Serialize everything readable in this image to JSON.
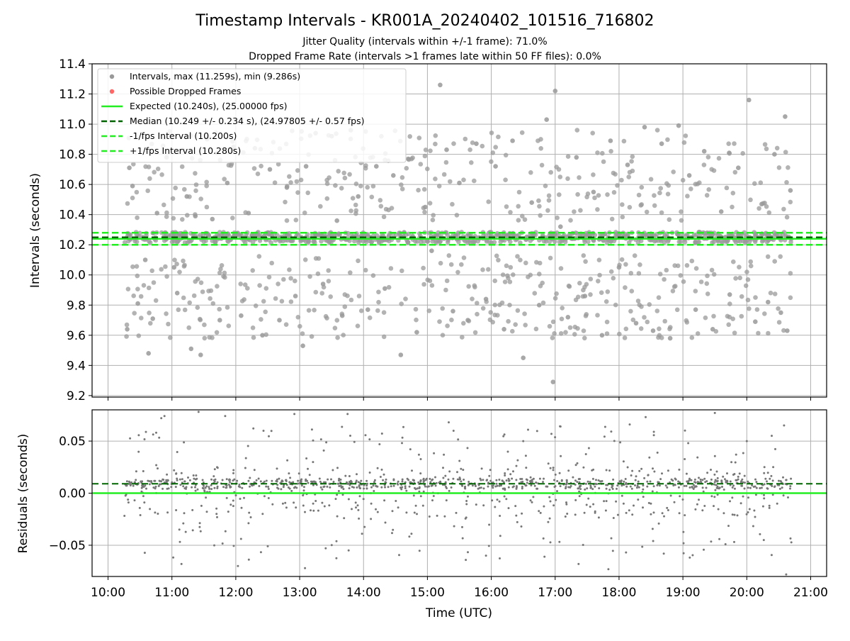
{
  "title": "Timestamp Intervals - KR001A_20240402_101516_716802",
  "subtitle_1": "Jitter Quality (intervals within +/-1 frame): 71.0%",
  "subtitle_2": "Dropped Frame Rate (intervals >1 frames late within 50 FF files): 0.0%",
  "chart_data": [
    {
      "type": "scatter",
      "panel": "top",
      "ylabel": "Intervals (seconds)",
      "xlabel": "",
      "xlim": [
        "09:45",
        "21:15"
      ],
      "ylim": [
        9.19,
        11.4
      ],
      "yticks": [
        "9.2",
        "9.4",
        "9.6",
        "9.8",
        "10.0",
        "10.2",
        "10.4",
        "10.6",
        "10.8",
        "11.0",
        "11.2",
        "11.4"
      ],
      "grid": true,
      "legend_position": "upper-left",
      "legend": [
        {
          "label": "Intervals, max (11.259s), min (9.286s)",
          "kind": "marker",
          "color": "#999999"
        },
        {
          "label": "Possible Dropped Frames",
          "kind": "marker",
          "color": "#ff6666"
        },
        {
          "label": "Expected (10.240s), (25.00000 fps)",
          "kind": "solid",
          "color": "#22ee22"
        },
        {
          "label": "Median (10.249 +/- 0.234 s), (24.97805 +/- 0.57 fps)",
          "kind": "dashed",
          "color": "#006400"
        },
        {
          "label": "-1/fps Interval (10.200s)",
          "kind": "dashed",
          "color": "#22ee22"
        },
        {
          "label": "+1/fps Interval (10.280s)",
          "kind": "dashed",
          "color": "#22ee22"
        }
      ],
      "reference_lines": {
        "expected": 10.24,
        "median": 10.249,
        "minus_1fps": 10.2,
        "plus_1fps": 10.28
      },
      "time_range": [
        "10:15",
        "20:42"
      ],
      "series": [
        {
          "name": "Intervals, max (11.259s), min (9.286s)",
          "color": "#999999",
          "values": [
            {
              "x": "10:18",
              "y": 9.64
            },
            {
              "x": "10:20",
              "y": 10.71
            },
            {
              "x": "10:23",
              "y": 10.59
            },
            {
              "x": "10:28",
              "y": 9.81
            },
            {
              "x": "10:35",
              "y": 10.1
            },
            {
              "x": "10:38",
              "y": 9.48
            },
            {
              "x": "10:42",
              "y": 9.71
            },
            {
              "x": "10:46",
              "y": 10.41
            },
            {
              "x": "10:55",
              "y": 10.78
            },
            {
              "x": "11:02",
              "y": 10.05
            },
            {
              "x": "11:05",
              "y": 9.88
            },
            {
              "x": "11:10",
              "y": 10.83
            },
            {
              "x": "11:14",
              "y": 10.52
            },
            {
              "x": "11:18",
              "y": 9.51
            },
            {
              "x": "11:22",
              "y": 10.39
            },
            {
              "x": "11:27",
              "y": 9.47
            },
            {
              "x": "11:33",
              "y": 10.9
            },
            {
              "x": "11:38",
              "y": 10.37
            },
            {
              "x": "11:45",
              "y": 9.7
            },
            {
              "x": "11:52",
              "y": 10.61
            },
            {
              "x": "11:58",
              "y": 10.85
            },
            {
              "x": "12:05",
              "y": 9.73
            },
            {
              "x": "12:12",
              "y": 10.41
            },
            {
              "x": "12:18",
              "y": 10.84
            },
            {
              "x": "12:25",
              "y": 9.6
            },
            {
              "x": "12:32",
              "y": 10.7
            },
            {
              "x": "12:41",
              "y": 9.7
            },
            {
              "x": "12:48",
              "y": 10.58
            },
            {
              "x": "12:56",
              "y": 9.86
            },
            {
              "x": "13:03",
              "y": 9.53
            },
            {
              "x": "13:06",
              "y": 10.72
            },
            {
              "x": "13:15",
              "y": 10.94
            },
            {
              "x": "13:22",
              "y": 9.94
            },
            {
              "x": "13:30",
              "y": 10.92
            },
            {
              "x": "13:35",
              "y": 10.36
            },
            {
              "x": "13:40",
              "y": 9.73
            },
            {
              "x": "13:48",
              "y": 10.96
            },
            {
              "x": "13:55",
              "y": 10.52
            },
            {
              "x": "14:04",
              "y": 9.77
            },
            {
              "x": "14:12",
              "y": 10.72
            },
            {
              "x": "14:20",
              "y": 9.91
            },
            {
              "x": "14:28",
              "y": 10.66
            },
            {
              "x": "14:35",
              "y": 9.47
            },
            {
              "x": "14:42",
              "y": 10.77
            },
            {
              "x": "14:50",
              "y": 9.62
            },
            {
              "x": "14:58",
              "y": 10.45
            },
            {
              "x": "15:04",
              "y": 10.16
            },
            {
              "x": "15:12",
              "y": 11.26
            },
            {
              "x": "15:18",
              "y": 10.83
            },
            {
              "x": "15:24",
              "y": 9.76
            },
            {
              "x": "15:30",
              "y": 10.61
            },
            {
              "x": "15:38",
              "y": 9.7
            },
            {
              "x": "15:46",
              "y": 10.87
            },
            {
              "x": "15:55",
              "y": 9.84
            },
            {
              "x": "16:04",
              "y": 10.72
            },
            {
              "x": "16:12",
              "y": 9.64
            },
            {
              "x": "16:20",
              "y": 10.89
            },
            {
              "x": "16:30",
              "y": 9.45
            },
            {
              "x": "16:38",
              "y": 10.48
            },
            {
              "x": "16:45",
              "y": 9.8
            },
            {
              "x": "16:52",
              "y": 11.03
            },
            {
              "x": "16:58",
              "y": 9.29
            },
            {
              "x": "17:00",
              "y": 11.22
            },
            {
              "x": "17:05",
              "y": 10.32
            },
            {
              "x": "17:12",
              "y": 9.72
            },
            {
              "x": "17:20",
              "y": 10.78
            },
            {
              "x": "17:28",
              "y": 9.86
            },
            {
              "x": "17:36",
              "y": 10.55
            },
            {
              "x": "17:44",
              "y": 9.6
            },
            {
              "x": "17:52",
              "y": 10.89
            },
            {
              "x": "18:00",
              "y": 10.05
            },
            {
              "x": "18:08",
              "y": 10.73
            },
            {
              "x": "18:16",
              "y": 9.68
            },
            {
              "x": "18:24",
              "y": 10.98
            },
            {
              "x": "18:32",
              "y": 9.63
            },
            {
              "x": "18:40",
              "y": 10.87
            },
            {
              "x": "18:48",
              "y": 9.58
            },
            {
              "x": "18:56",
              "y": 10.99
            },
            {
              "x": "19:06",
              "y": 10.66
            },
            {
              "x": "19:12",
              "y": 9.77
            },
            {
              "x": "19:20",
              "y": 10.82
            },
            {
              "x": "19:28",
              "y": 9.64
            },
            {
              "x": "19:36",
              "y": 10.42
            },
            {
              "x": "19:44",
              "y": 9.87
            },
            {
              "x": "19:52",
              "y": 10.71
            },
            {
              "x": "20:02",
              "y": 11.16
            },
            {
              "x": "20:08",
              "y": 9.69
            },
            {
              "x": "20:14",
              "y": 10.47
            },
            {
              "x": "20:20",
              "y": 9.82
            },
            {
              "x": "20:26",
              "y": 10.8
            },
            {
              "x": "20:32",
              "y": 9.75
            },
            {
              "x": "20:36",
              "y": 11.05
            },
            {
              "x": "20:38",
              "y": 9.63
            },
            {
              "x": "20:41",
              "y": 10.56
            }
          ]
        },
        {
          "name": "Possible Dropped Frames",
          "color": "#ff6666",
          "values": []
        }
      ]
    },
    {
      "type": "scatter",
      "panel": "bottom",
      "ylabel": "Residuals (seconds)",
      "xlabel": "Time (UTC)",
      "xlim": [
        "09:45",
        "21:15"
      ],
      "ylim": [
        -0.08,
        0.08
      ],
      "yticks": [
        "−0.05",
        "0.00",
        "0.05"
      ],
      "xticks": [
        "10:00",
        "11:00",
        "12:00",
        "13:00",
        "14:00",
        "15:00",
        "16:00",
        "17:00",
        "18:00",
        "19:00",
        "20:00",
        "21:00"
      ],
      "grid": true,
      "reference_lines": {
        "expected": 0.0,
        "median": 0.009
      },
      "series": [
        {
          "name": "Residuals",
          "color": "#777777",
          "values": [
            {
              "x": "10:50",
              "y": 0.072
            },
            {
              "x": "10:53",
              "y": 0.074
            },
            {
              "x": "11:07",
              "y": -0.035
            },
            {
              "x": "11:09",
              "y": -0.068
            },
            {
              "x": "11:25",
              "y": 0.078
            },
            {
              "x": "11:50",
              "y": 0.074
            },
            {
              "x": "12:02",
              "y": -0.07
            },
            {
              "x": "12:30",
              "y": -0.051
            },
            {
              "x": "12:55",
              "y": 0.076
            },
            {
              "x": "13:05",
              "y": -0.072
            },
            {
              "x": "13:45",
              "y": 0.076
            },
            {
              "x": "13:46",
              "y": -0.055
            },
            {
              "x": "14:15",
              "y": 0.047
            },
            {
              "x": "14:45",
              "y": -0.039
            },
            {
              "x": "15:20",
              "y": 0.068
            },
            {
              "x": "15:55",
              "y": -0.06
            },
            {
              "x": "16:30",
              "y": 0.05
            },
            {
              "x": "16:50",
              "y": -0.061
            },
            {
              "x": "17:05",
              "y": 0.064
            },
            {
              "x": "17:22",
              "y": -0.068
            },
            {
              "x": "17:50",
              "y": -0.073
            },
            {
              "x": "18:10",
              "y": 0.066
            },
            {
              "x": "18:25",
              "y": 0.073
            },
            {
              "x": "18:42",
              "y": -0.058
            },
            {
              "x": "19:05",
              "y": 0.048
            },
            {
              "x": "19:30",
              "y": 0.077
            },
            {
              "x": "19:40",
              "y": -0.049
            },
            {
              "x": "20:00",
              "y": 0.05
            },
            {
              "x": "20:16",
              "y": -0.045
            },
            {
              "x": "20:35",
              "y": 0.065
            },
            {
              "x": "20:37",
              "y": -0.078
            }
          ]
        }
      ]
    }
  ],
  "colors": {
    "grid": "#b0b0b0",
    "axes": "#000000",
    "points_top": "#999999",
    "points_bottom": "#777777",
    "expected": "#22ee22",
    "median": "#006400",
    "fps_band": "#22ee22"
  }
}
